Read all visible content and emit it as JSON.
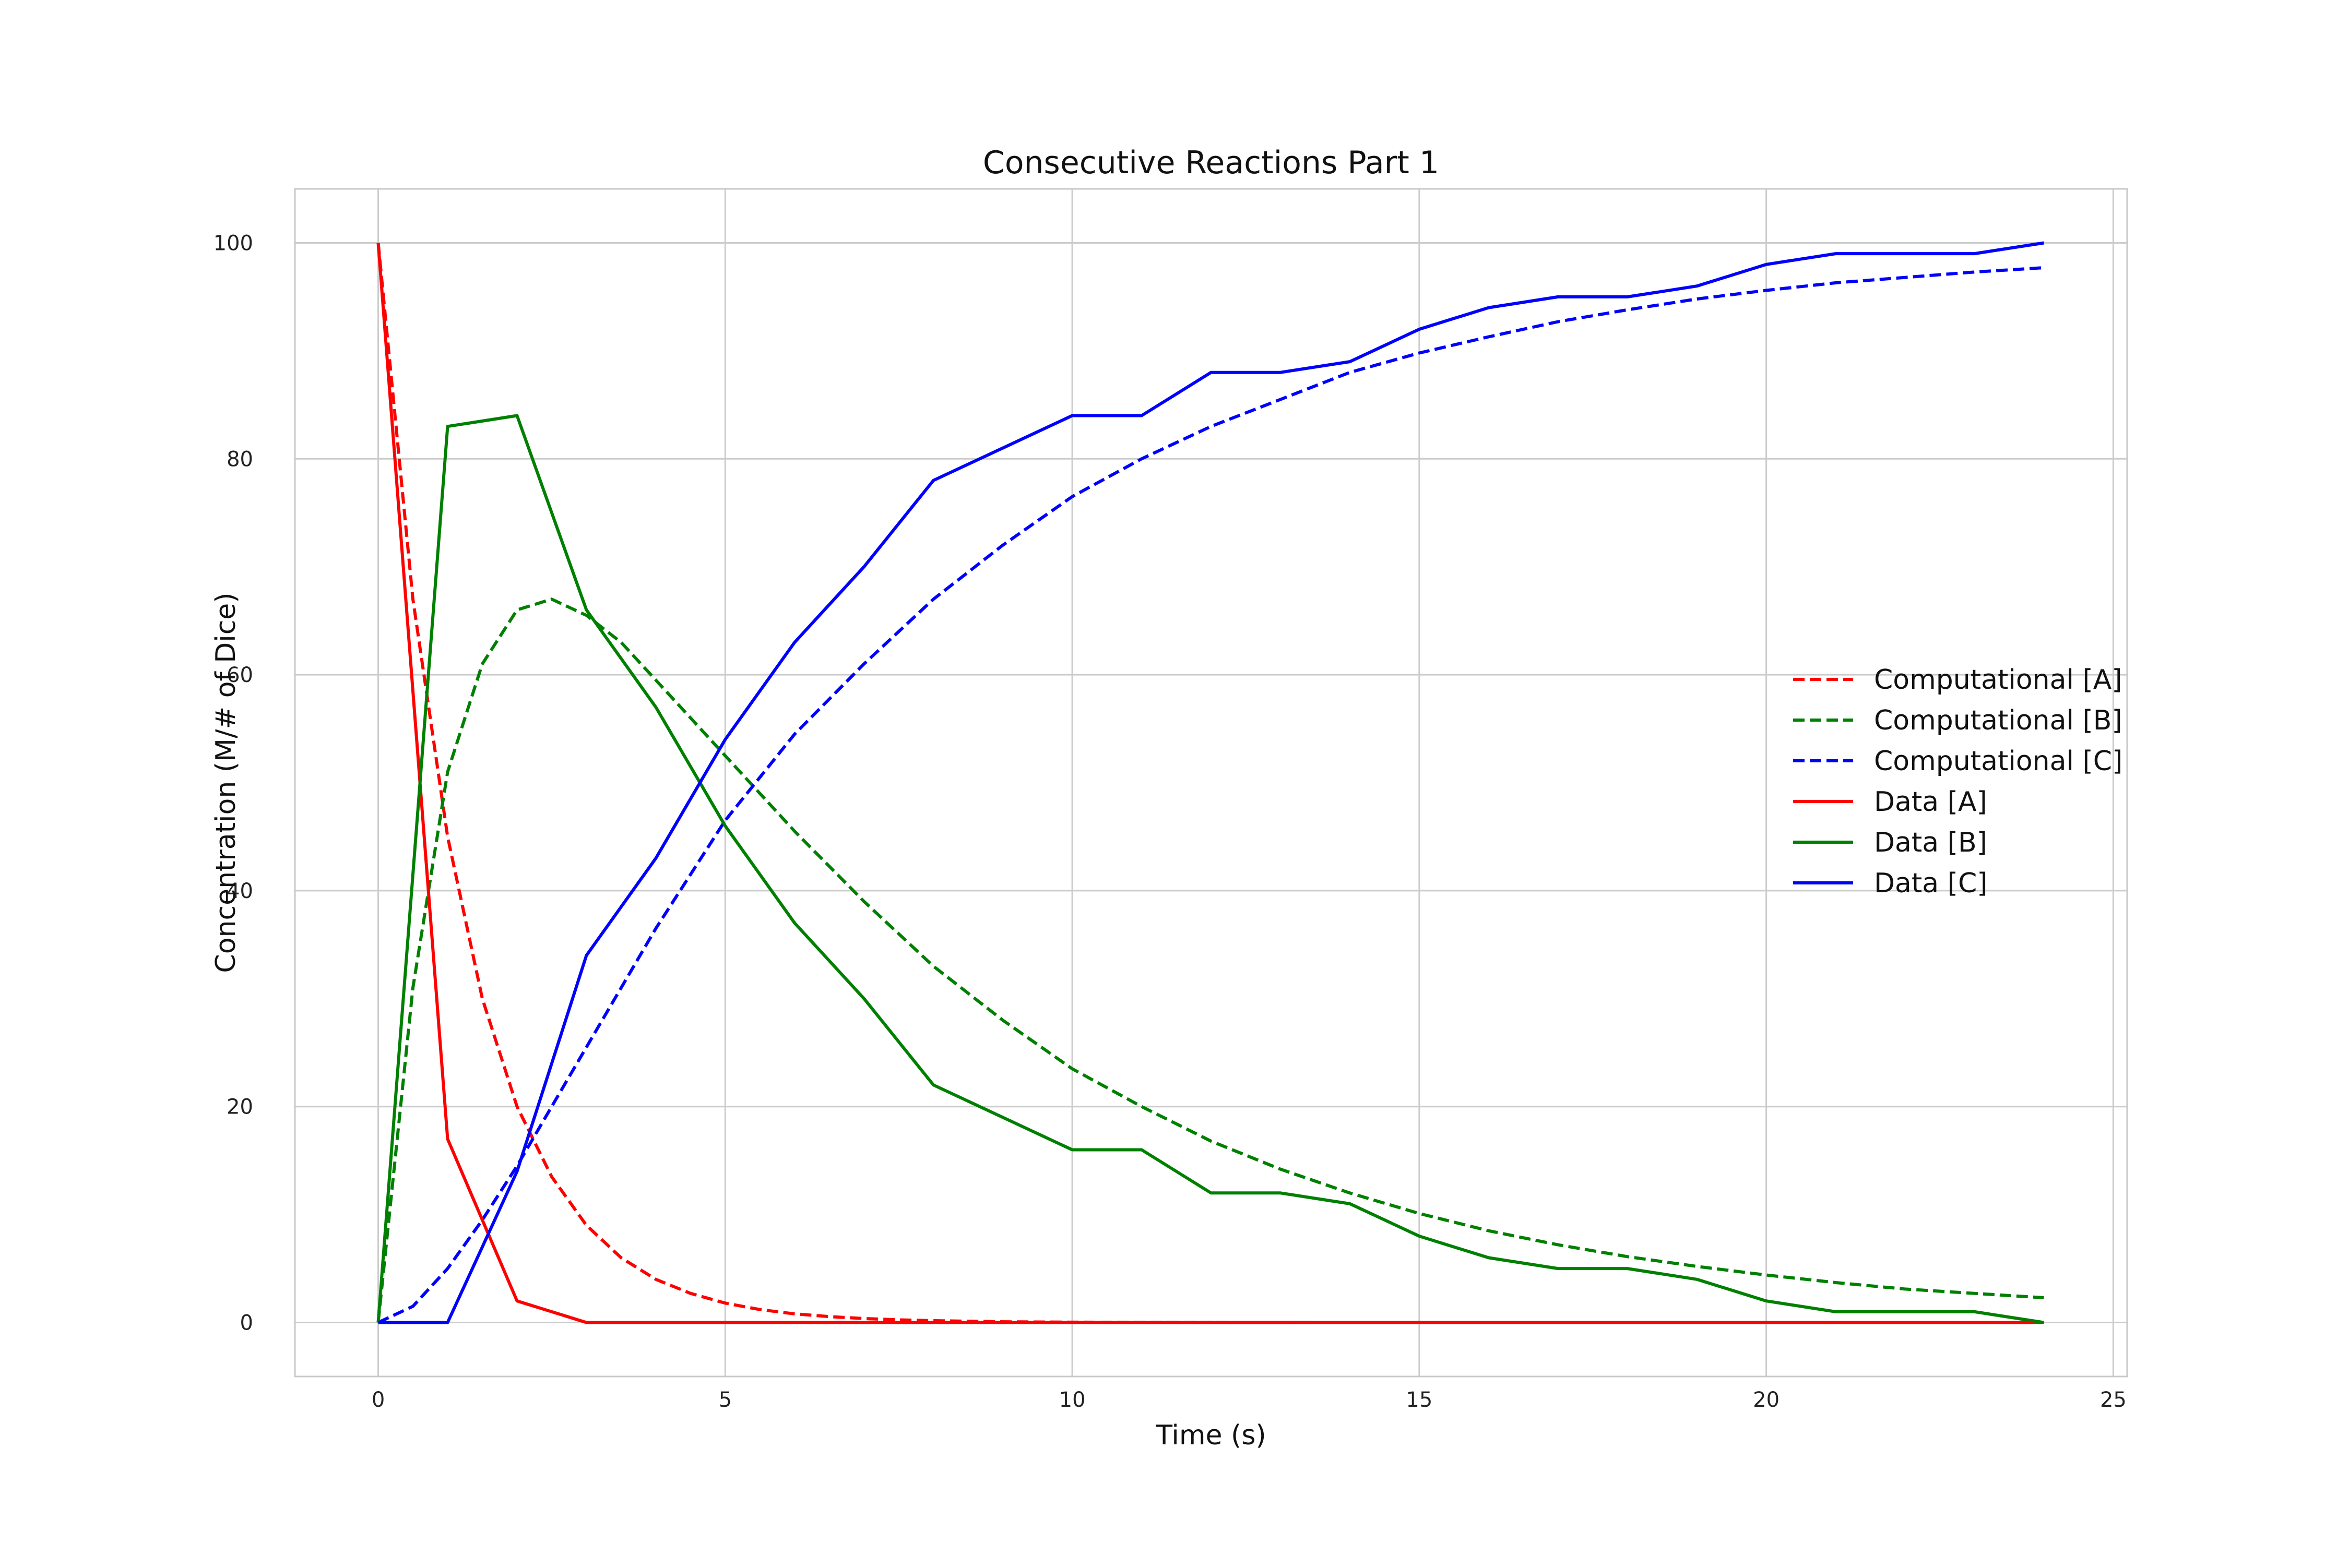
{
  "chart_data": {
    "type": "line",
    "title": "Consecutive Reactions Part 1",
    "xlabel": "Time (s)",
    "ylabel": "Concentration (M/# of Dice)",
    "xlim": [
      -1.2,
      25.2
    ],
    "ylim": [
      -5,
      105
    ],
    "xticks": [
      "0",
      "5",
      "10",
      "15",
      "20",
      "25"
    ],
    "xtick_values": [
      0,
      5,
      10,
      15,
      20,
      25
    ],
    "yticks": [
      "0",
      "20",
      "40",
      "60",
      "80",
      "100"
    ],
    "ytick_values": [
      0,
      20,
      40,
      60,
      80,
      100
    ],
    "grid": true,
    "legend_position": "center-right",
    "series": [
      {
        "name": "Computational [A]",
        "color": "#ff0000",
        "style": "dashed",
        "x": [
          0,
          0.5,
          1,
          1.5,
          2,
          2.5,
          3,
          3.5,
          4,
          4.5,
          5,
          5.5,
          6,
          6.5,
          7,
          7.5,
          8,
          9,
          10,
          12,
          14,
          16,
          18,
          20,
          22,
          24
        ],
        "y": [
          100,
          67,
          45,
          30,
          20,
          13.5,
          9,
          6,
          4,
          2.7,
          1.8,
          1.2,
          0.8,
          0.55,
          0.37,
          0.25,
          0.17,
          0.07,
          0.03,
          0.01,
          0,
          0,
          0,
          0,
          0,
          0
        ]
      },
      {
        "name": "Computational [B]",
        "color": "#008000",
        "style": "dashed",
        "x": [
          0,
          0.5,
          1,
          1.5,
          2,
          2.5,
          3,
          3.5,
          4,
          5,
          6,
          7,
          8,
          9,
          10,
          11,
          12,
          13,
          14,
          15,
          16,
          17,
          18,
          19,
          20,
          21,
          22,
          23,
          24
        ],
        "y": [
          0,
          31,
          51,
          61,
          66,
          67,
          65.5,
          63,
          59.5,
          52.5,
          45.5,
          39,
          33,
          28,
          23.5,
          20,
          16.8,
          14.2,
          12,
          10.1,
          8.5,
          7.2,
          6.1,
          5.2,
          4.4,
          3.7,
          3.1,
          2.7,
          2.3
        ]
      },
      {
        "name": "Computational [C]",
        "color": "#0000ff",
        "style": "dashed",
        "x": [
          0,
          0.5,
          1,
          1.5,
          2,
          2.5,
          3,
          4,
          5,
          6,
          7,
          8,
          9,
          10,
          11,
          12,
          13,
          14,
          15,
          16,
          17,
          18,
          19,
          20,
          21,
          22,
          23,
          24
        ],
        "y": [
          0,
          1.5,
          5,
          9.5,
          14.5,
          20,
          25.5,
          36.5,
          46.5,
          54.5,
          61,
          67,
          72,
          76.5,
          80,
          83,
          85.5,
          88,
          89.8,
          91.3,
          92.7,
          93.8,
          94.8,
          95.6,
          96.3,
          96.8,
          97.3,
          97.7
        ]
      },
      {
        "name": "Data [A]",
        "color": "#ff0000",
        "style": "solid",
        "x": [
          0,
          1,
          2,
          3,
          4,
          5,
          6,
          7,
          8,
          9,
          10,
          11,
          12,
          13,
          14,
          15,
          16,
          17,
          18,
          19,
          20,
          21,
          22,
          23,
          24
        ],
        "y": [
          100,
          17,
          2,
          0,
          0,
          0,
          0,
          0,
          0,
          0,
          0,
          0,
          0,
          0,
          0,
          0,
          0,
          0,
          0,
          0,
          0,
          0,
          0,
          0,
          0
        ]
      },
      {
        "name": "Data [B]",
        "color": "#008000",
        "style": "solid",
        "x": [
          0,
          1,
          2,
          3,
          4,
          5,
          6,
          7,
          8,
          9,
          10,
          11,
          12,
          13,
          14,
          15,
          16,
          17,
          18,
          19,
          20,
          21,
          22,
          23,
          24
        ],
        "y": [
          0,
          83,
          84,
          66,
          57,
          46,
          37,
          30,
          22,
          19,
          16,
          16,
          12,
          12,
          11,
          8,
          6,
          5,
          5,
          4,
          2,
          1,
          1,
          1,
          0
        ]
      },
      {
        "name": "Data [C]",
        "color": "#0000ff",
        "style": "solid",
        "x": [
          0,
          1,
          2,
          3,
          4,
          5,
          6,
          7,
          8,
          9,
          10,
          11,
          12,
          13,
          14,
          15,
          16,
          17,
          18,
          19,
          20,
          21,
          22,
          23,
          24
        ],
        "y": [
          0,
          0,
          14,
          34,
          43,
          54,
          63,
          70,
          78,
          81,
          84,
          84,
          88,
          88,
          89,
          92,
          94,
          95,
          95,
          96,
          98,
          99,
          99,
          99,
          100
        ]
      }
    ]
  }
}
